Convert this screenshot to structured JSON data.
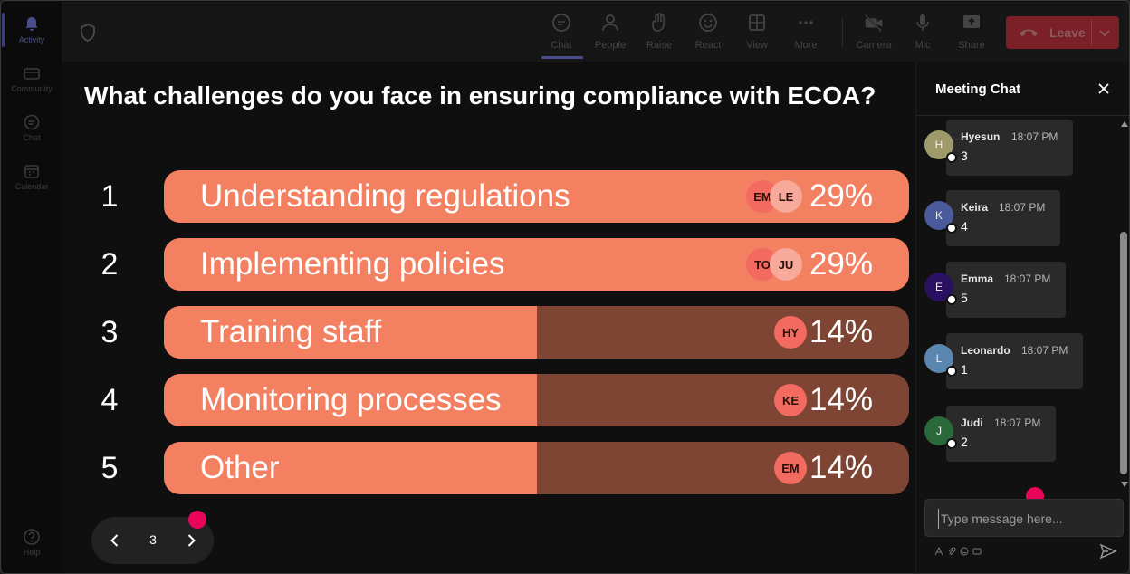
{
  "rail": {
    "items": [
      {
        "label": "Activity",
        "icon": "bell-icon",
        "active": true
      },
      {
        "label": "Community",
        "icon": "community-icon"
      },
      {
        "label": "Chat",
        "icon": "chat-icon"
      },
      {
        "label": "Calendar",
        "icon": "calendar-icon"
      }
    ],
    "help": {
      "label": "Help",
      "icon": "help-icon"
    }
  },
  "toolbar": {
    "buttons": [
      {
        "label": "Chat",
        "icon": "chat-icon",
        "active": true
      },
      {
        "label": "People",
        "icon": "people-icon"
      },
      {
        "label": "Raise",
        "icon": "hand-icon"
      },
      {
        "label": "React",
        "icon": "smile-icon"
      },
      {
        "label": "View",
        "icon": "grid-icon"
      },
      {
        "label": "More",
        "icon": "more-icon"
      },
      {
        "label": "Camera",
        "icon": "camera-off-icon"
      },
      {
        "label": "Mic",
        "icon": "mic-icon"
      },
      {
        "label": "Share",
        "icon": "share-icon"
      }
    ],
    "leave_label": "Leave",
    "leave_color": "#7a2026"
  },
  "poll": {
    "question": "What challenges do you face in ensuring compliance with ECOA?",
    "options": [
      {
        "num": "1",
        "label": "Understanding regulations",
        "percent_text": "29%",
        "fill": 1.0,
        "avatars": [
          "EM",
          "LE"
        ]
      },
      {
        "num": "2",
        "label": "Implementing policies",
        "percent_text": "29%",
        "fill": 1.0,
        "avatars": [
          "TO",
          "JU"
        ]
      },
      {
        "num": "3",
        "label": "Training staff",
        "percent_text": "14%",
        "fill": 0.5,
        "avatars": [
          "HY"
        ]
      },
      {
        "num": "4",
        "label": "Monitoring processes",
        "percent_text": "14%",
        "fill": 0.5,
        "avatars": [
          "KE"
        ]
      },
      {
        "num": "5",
        "label": "Other",
        "percent_text": "14%",
        "fill": 0.5,
        "avatars": [
          "EM"
        ]
      }
    ],
    "colors": {
      "fill": "#f48062",
      "track": "#7e4535"
    },
    "page": "3"
  },
  "chat": {
    "title": "Meeting Chat",
    "messages": [
      {
        "initial": "H",
        "name": "Hyesun",
        "time": "18:07 PM",
        "text": "3",
        "color": "#9f9a6a"
      },
      {
        "initial": "K",
        "name": "Keira",
        "time": "18:07 PM",
        "text": "4",
        "color": "#4a5a9a"
      },
      {
        "initial": "E",
        "name": "Emma",
        "time": "18:07 PM",
        "text": "5",
        "color": "#2a1060"
      },
      {
        "initial": "L",
        "name": "Leonardo",
        "time": "18:07 PM",
        "text": "1",
        "color": "#5a86b0"
      },
      {
        "initial": "J",
        "name": "Judi",
        "time": "18:07 PM",
        "text": "2",
        "color": "#2a6a3a"
      }
    ],
    "compose_placeholder": "Type message here..."
  }
}
